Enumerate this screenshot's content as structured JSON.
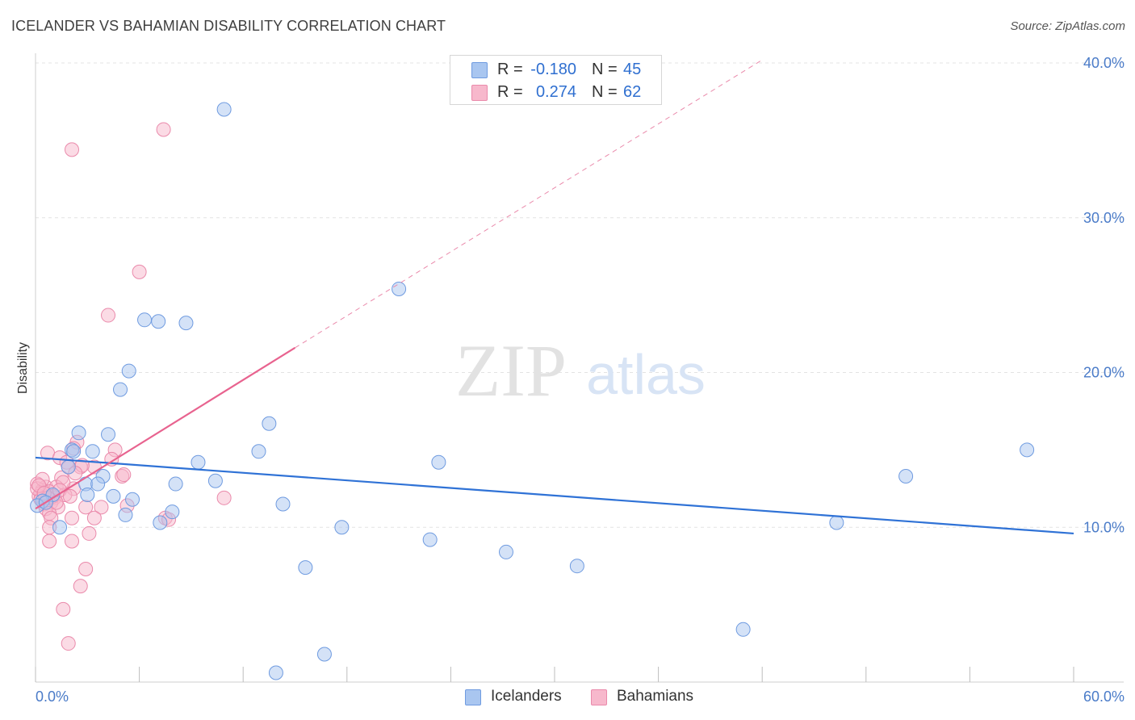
{
  "header": {
    "title": "ICELANDER VS BAHAMIAN DISABILITY CORRELATION CHART",
    "source": "Source: ZipAtlas.com"
  },
  "watermark": {
    "zip": "ZIP",
    "atlas": "atlas"
  },
  "legend": {
    "series": [
      {
        "r_label": "R =",
        "r_value": "-0.180",
        "n_label": "N =",
        "n_value": "45"
      },
      {
        "r_label": "R =",
        "r_value": "0.274",
        "n_label": "N =",
        "n_value": "62"
      }
    ]
  },
  "bottom_legend": {
    "icelanders": "Icelanders",
    "bahamians": "Bahamians"
  },
  "colors": {
    "blue_fill": "#a9c6f0",
    "blue_stroke": "#6f9be0",
    "blue_line": "#2f72d6",
    "pink_fill": "#f7b8cc",
    "pink_stroke": "#ea8aab",
    "pink_line": "#e8638f",
    "grid": "#e3e3e3",
    "tick_text": "#4a7bc8"
  },
  "chart_data": {
    "type": "scatter",
    "title": "ICELANDER VS BAHAMIAN DISABILITY CORRELATION CHART",
    "xlabel": "",
    "ylabel": "Disability",
    "xlim": [
      0,
      60
    ],
    "ylim": [
      0,
      40
    ],
    "x_tick_labels": [
      "0.0%",
      "60.0%"
    ],
    "y_ticks": [
      10,
      20,
      30,
      40
    ],
    "y_tick_labels": [
      "10.0%",
      "20.0%",
      "30.0%",
      "40.0%"
    ],
    "grid": true,
    "series": [
      {
        "name": "Icelanders",
        "r": -0.18,
        "n": 45,
        "trend": {
          "x0": 0,
          "y0": 14.5,
          "x1": 60,
          "y1": 9.6,
          "dashed_from": null
        },
        "points": [
          [
            10.9,
            37.0
          ],
          [
            21.0,
            25.4
          ],
          [
            6.3,
            23.4
          ],
          [
            7.1,
            23.3
          ],
          [
            8.7,
            23.2
          ],
          [
            5.4,
            20.1
          ],
          [
            4.9,
            18.9
          ],
          [
            13.5,
            16.7
          ],
          [
            2.5,
            16.1
          ],
          [
            4.2,
            16.0
          ],
          [
            2.1,
            15.0
          ],
          [
            3.3,
            14.9
          ],
          [
            12.9,
            14.9
          ],
          [
            57.3,
            15.0
          ],
          [
            9.4,
            14.2
          ],
          [
            23.3,
            14.2
          ],
          [
            1.9,
            13.9
          ],
          [
            2.9,
            12.8
          ],
          [
            3.9,
            13.3
          ],
          [
            10.4,
            13.0
          ],
          [
            50.3,
            13.3
          ],
          [
            8.1,
            12.8
          ],
          [
            3.6,
            12.8
          ],
          [
            1.0,
            12.1
          ],
          [
            3.0,
            12.1
          ],
          [
            4.5,
            12.0
          ],
          [
            5.6,
            11.8
          ],
          [
            0.4,
            11.7
          ],
          [
            0.1,
            11.4
          ],
          [
            14.3,
            11.5
          ],
          [
            5.2,
            10.8
          ],
          [
            7.9,
            11.0
          ],
          [
            7.2,
            10.3
          ],
          [
            1.4,
            10.0
          ],
          [
            17.7,
            10.0
          ],
          [
            46.3,
            10.3
          ],
          [
            22.8,
            9.2
          ],
          [
            27.2,
            8.4
          ],
          [
            31.3,
            7.5
          ],
          [
            15.6,
            7.4
          ],
          [
            40.9,
            3.4
          ],
          [
            16.7,
            1.8
          ],
          [
            13.9,
            0.6
          ],
          [
            0.6,
            11.6
          ],
          [
            2.2,
            14.9
          ]
        ]
      },
      {
        "name": "Bahamians",
        "r": 0.274,
        "n": 62,
        "trend": {
          "x0": 0,
          "y0": 11.2,
          "x1": 15,
          "y1": 21.6,
          "dashed_to_x": 42,
          "dashed_to_y": 40.2
        },
        "points": [
          [
            7.4,
            35.7
          ],
          [
            2.1,
            34.4
          ],
          [
            6.0,
            26.5
          ],
          [
            4.2,
            23.7
          ],
          [
            2.4,
            15.5
          ],
          [
            2.2,
            15.1
          ],
          [
            4.6,
            15.0
          ],
          [
            0.7,
            14.8
          ],
          [
            1.4,
            14.5
          ],
          [
            4.4,
            14.4
          ],
          [
            1.8,
            14.2
          ],
          [
            1.9,
            13.9
          ],
          [
            3.4,
            13.9
          ],
          [
            2.6,
            13.9
          ],
          [
            1.5,
            13.2
          ],
          [
            5.0,
            13.3
          ],
          [
            5.1,
            13.4
          ],
          [
            0.1,
            12.8
          ],
          [
            0.6,
            12.6
          ],
          [
            1.2,
            12.6
          ],
          [
            2.2,
            12.5
          ],
          [
            0.4,
            12.4
          ],
          [
            0.3,
            12.2
          ],
          [
            1.7,
            12.1
          ],
          [
            0.8,
            12.3
          ],
          [
            0.2,
            12.0
          ],
          [
            1.1,
            11.9
          ],
          [
            0.9,
            11.6
          ],
          [
            0.5,
            11.5
          ],
          [
            1.3,
            11.3
          ],
          [
            2.9,
            11.3
          ],
          [
            3.8,
            11.3
          ],
          [
            0.3,
            11.8
          ],
          [
            10.9,
            11.9
          ],
          [
            0.6,
            11.2
          ],
          [
            0.8,
            10.9
          ],
          [
            3.4,
            10.6
          ],
          [
            0.9,
            10.6
          ],
          [
            2.1,
            10.6
          ],
          [
            7.5,
            10.6
          ],
          [
            7.7,
            10.5
          ],
          [
            0.8,
            10.0
          ],
          [
            3.1,
            9.6
          ],
          [
            0.8,
            9.1
          ],
          [
            2.1,
            9.1
          ],
          [
            2.9,
            7.3
          ],
          [
            2.6,
            6.2
          ],
          [
            1.6,
            4.7
          ],
          [
            1.9,
            2.5
          ],
          [
            0.1,
            12.5
          ],
          [
            0.4,
            13.1
          ],
          [
            1.6,
            12.9
          ],
          [
            2.7,
            14.0
          ],
          [
            5.3,
            11.4
          ],
          [
            0.2,
            12.7
          ],
          [
            1.0,
            12.0
          ],
          [
            0.7,
            11.9
          ],
          [
            2.3,
            13.5
          ],
          [
            1.2,
            11.6
          ],
          [
            0.5,
            12.2
          ],
          [
            1.4,
            12.4
          ],
          [
            2.0,
            12.0
          ]
        ]
      }
    ]
  }
}
